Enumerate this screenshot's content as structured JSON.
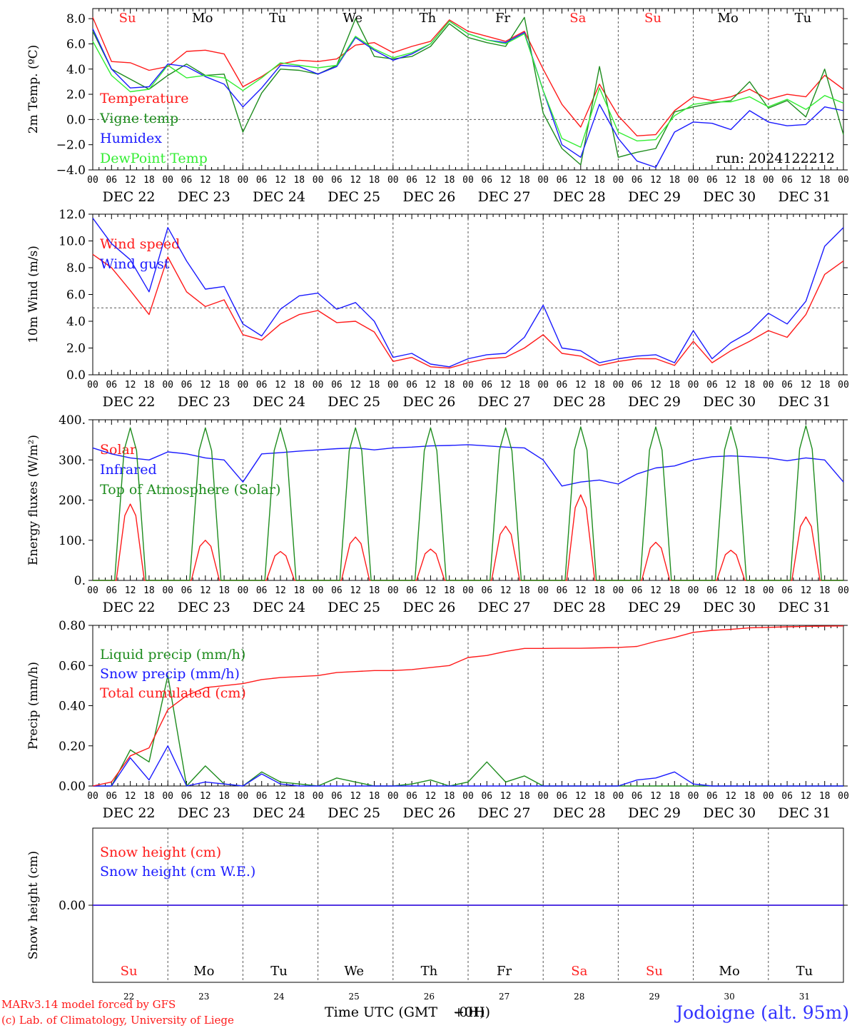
{
  "footer": {
    "credit_line1": "MARv3.14 model forced by GFS",
    "credit_line2": "(c) Lab. of Climatology, University of Liege",
    "xaxis_title_a": "Time UTC (GMT",
    "xaxis_title_b": "+0H)",
    "xaxis_title_overlap": "-0H)",
    "location": "Jodoigne (alt. 95m)"
  },
  "days": {
    "weekday_labels": [
      "Su",
      "Mo",
      "Tu",
      "We",
      "Th",
      "Fr",
      "Sa",
      "Su",
      "Mo",
      "Tu"
    ],
    "weekend_flags": [
      true,
      false,
      false,
      false,
      false,
      false,
      true,
      true,
      false,
      false
    ],
    "date_labels": [
      "DEC 22",
      "DEC 23",
      "DEC 24",
      "DEC 25",
      "DEC 26",
      "DEC 27",
      "DEC 28",
      "DEC 29",
      "DEC 30",
      "DEC 31"
    ],
    "day_numbers": [
      "22",
      "23",
      "24",
      "25",
      "26",
      "27",
      "28",
      "29",
      "30",
      "31"
    ],
    "hour_ticks": [
      "00",
      "06",
      "12",
      "18"
    ],
    "final_hour": "00"
  },
  "colors": {
    "red": "#ff1a1a",
    "green": "#1e8c1e",
    "blue": "#1a1aff",
    "lightgreen": "#33ee33",
    "axis": "#000000",
    "grid": "#555555",
    "weekend": "#ff2020"
  },
  "chart_data": [
    {
      "type": "line",
      "ylabel": "2m Temp. (ºC)",
      "ylim": [
        -4,
        8.8
      ],
      "yticks": [
        "8.0",
        "6.0",
        "4.0",
        "2.0",
        "0.0",
        "−2.0",
        "−4.0"
      ],
      "ytick_values": [
        8,
        6,
        4,
        2,
        0,
        -2,
        -4
      ],
      "hline": 0,
      "annotation": "run: 2024122212",
      "x_hours": [
        0,
        6,
        12,
        18,
        24,
        30,
        36,
        42,
        48,
        54,
        60,
        66,
        72,
        78,
        84,
        90,
        96,
        102,
        108,
        114,
        120,
        126,
        132,
        138,
        144,
        150,
        156,
        162,
        168,
        174,
        180,
        186,
        192,
        198,
        204,
        210,
        216,
        222,
        228,
        234,
        240
      ],
      "series": [
        {
          "name": "Temperature",
          "color_key": "red",
          "values": [
            8.1,
            4.6,
            4.5,
            3.9,
            4.2,
            5.4,
            5.5,
            5.2,
            2.6,
            3.4,
            4.4,
            4.7,
            4.6,
            4.8,
            5.9,
            6.1,
            5.3,
            5.8,
            6.2,
            7.9,
            7.0,
            6.6,
            6.2,
            7.0,
            4.0,
            1.2,
            -0.6,
            2.8,
            0.3,
            -1.3,
            -1.2,
            0.7,
            1.8,
            1.5,
            1.8,
            2.4,
            1.6,
            2.0,
            1.8,
            3.5,
            2.4
          ]
        },
        {
          "name": "Vigne temp",
          "color_key": "green",
          "values": [
            7.0,
            4.0,
            3.2,
            2.4,
            3.5,
            4.4,
            3.5,
            3.6,
            -1.0,
            2.1,
            4.0,
            3.9,
            3.6,
            4.3,
            8.0,
            5.0,
            4.8,
            5.0,
            5.8,
            7.6,
            6.5,
            6.1,
            5.8,
            8.1,
            0.5,
            -2.3,
            -3.6,
            4.2,
            -3.0,
            -2.6,
            -2.3,
            0.6,
            1.0,
            1.3,
            1.5,
            3.0,
            0.9,
            1.5,
            0.2,
            4.0,
            -1.2
          ]
        },
        {
          "name": "Humidex",
          "color_key": "blue",
          "values": [
            7.2,
            4.0,
            2.5,
            2.6,
            4.4,
            4.2,
            3.4,
            2.8,
            1.0,
            2.5,
            4.3,
            4.2,
            3.6,
            4.2,
            6.5,
            5.5,
            4.7,
            5.2,
            6.0,
            7.8,
            6.8,
            6.3,
            6.1,
            6.9,
            2.3,
            -2.0,
            -3.0,
            1.2,
            -1.5,
            -3.3,
            -3.8,
            -1.0,
            -0.2,
            -0.3,
            -0.8,
            0.7,
            -0.2,
            -0.5,
            -0.4,
            1.0,
            0.7
          ]
        },
        {
          "name": "DewPoint Temp",
          "color_key": "lightgreen",
          "values": [
            6.2,
            3.5,
            2.2,
            2.4,
            4.3,
            3.3,
            3.5,
            3.3,
            2.3,
            3.3,
            4.5,
            4.3,
            4.1,
            4.3,
            6.6,
            5.6,
            4.9,
            5.3,
            6.0,
            7.8,
            6.8,
            6.3,
            6.0,
            6.8,
            2.3,
            -1.5,
            -2.2,
            2.5,
            -1.0,
            -1.7,
            -1.6,
            0.3,
            1.2,
            1.4,
            1.4,
            1.8,
            1.0,
            1.6,
            0.8,
            1.9,
            1.3
          ]
        }
      ]
    },
    {
      "type": "line",
      "ylabel": "10m Wind (m/s)",
      "ylim": [
        0,
        12
      ],
      "yticks": [
        "12.0",
        "10.0",
        "8.0",
        "6.0",
        "4.0",
        "2.0",
        "0.0"
      ],
      "ytick_values": [
        12,
        10,
        8,
        6,
        4,
        2,
        0
      ],
      "hline": 5,
      "x_hours": [
        0,
        6,
        12,
        18,
        24,
        30,
        36,
        42,
        48,
        54,
        60,
        66,
        72,
        78,
        84,
        90,
        96,
        102,
        108,
        114,
        120,
        126,
        132,
        138,
        144,
        150,
        156,
        162,
        168,
        174,
        180,
        186,
        192,
        198,
        204,
        210,
        216,
        222,
        228,
        234,
        240
      ],
      "series": [
        {
          "name": "Wind speed",
          "color_key": "red",
          "values": [
            9.0,
            8.0,
            6.3,
            4.5,
            8.8,
            6.2,
            5.1,
            5.6,
            3.0,
            2.6,
            3.8,
            4.5,
            4.8,
            3.9,
            4.0,
            3.2,
            1.0,
            1.3,
            0.6,
            0.5,
            0.9,
            1.2,
            1.3,
            2.0,
            3.0,
            1.6,
            1.4,
            0.7,
            1.0,
            1.2,
            1.2,
            0.7,
            2.5,
            0.9,
            1.8,
            2.5,
            3.3,
            2.8,
            4.5,
            7.5,
            8.5
          ]
        },
        {
          "name": "Wind gust",
          "color_key": "blue",
          "values": [
            11.7,
            9.8,
            8.6,
            6.2,
            11.0,
            8.5,
            6.4,
            6.6,
            3.8,
            2.9,
            4.9,
            5.9,
            6.1,
            4.9,
            5.4,
            4.0,
            1.3,
            1.6,
            0.8,
            0.6,
            1.2,
            1.5,
            1.6,
            2.8,
            5.2,
            2.0,
            1.8,
            0.9,
            1.2,
            1.4,
            1.5,
            0.9,
            3.3,
            1.2,
            2.4,
            3.2,
            4.6,
            3.8,
            5.5,
            9.6,
            11.0
          ]
        }
      ]
    },
    {
      "type": "line",
      "ylabel": "Energy fluxes (W/m²)",
      "ylim": [
        0,
        400
      ],
      "yticks": [
        "400.",
        "300.",
        "200.",
        "100.",
        "0."
      ],
      "ytick_values": [
        400,
        300,
        200,
        100,
        0
      ],
      "x_hours": [
        0,
        6,
        12,
        18,
        24,
        30,
        36,
        42,
        48,
        54,
        60,
        66,
        72,
        78,
        84,
        90,
        96,
        102,
        108,
        114,
        120,
        126,
        132,
        138,
        144,
        150,
        156,
        162,
        168,
        174,
        180,
        186,
        192,
        198,
        204,
        210,
        216,
        222,
        228,
        234,
        240
      ],
      "series": [
        {
          "name": "Solar",
          "color_key": "red",
          "peaks": [
            190,
            100,
            72,
            108,
            78,
            135,
            213,
            95,
            75,
            158
          ]
        },
        {
          "name": "Infrared",
          "color_key": "blue",
          "values": [
            330,
            315,
            305,
            300,
            320,
            315,
            305,
            300,
            245,
            315,
            318,
            322,
            325,
            328,
            330,
            325,
            330,
            332,
            335,
            336,
            338,
            335,
            332,
            330,
            300,
            235,
            245,
            250,
            240,
            265,
            280,
            285,
            300,
            308,
            310,
            308,
            305,
            298,
            305,
            300,
            245
          ]
        },
        {
          "name": "Top of Atmosphere (Solar)",
          "color_key": "green",
          "peaks": [
            380,
            380,
            380,
            380,
            380,
            380,
            382,
            382,
            383,
            385
          ]
        }
      ]
    },
    {
      "type": "line",
      "ylabel": "Precip (mm/h)",
      "ylim": [
        0,
        0.8
      ],
      "yticks": [
        "0.80",
        "0.60",
        "0.40",
        "0.20",
        "0.00"
      ],
      "ytick_values": [
        0.8,
        0.6,
        0.4,
        0.2,
        0.0
      ],
      "x_hours": [
        0,
        6,
        12,
        18,
        24,
        30,
        36,
        42,
        48,
        54,
        60,
        66,
        72,
        78,
        84,
        90,
        96,
        102,
        108,
        114,
        120,
        126,
        132,
        138,
        144,
        150,
        156,
        162,
        168,
        174,
        180,
        186,
        192,
        198,
        204,
        210,
        216,
        222,
        228,
        234,
        240
      ],
      "series": [
        {
          "name": "Liquid precip (mm/h)",
          "color_key": "green",
          "values": [
            0.0,
            0.0,
            0.18,
            0.12,
            0.55,
            0.0,
            0.1,
            0.01,
            0.0,
            0.07,
            0.02,
            0.01,
            0.0,
            0.04,
            0.02,
            0.0,
            0.0,
            0.01,
            0.03,
            0.0,
            0.02,
            0.12,
            0.02,
            0.05,
            0.0,
            0.0,
            0.0,
            0.0,
            0.0,
            0.0,
            0.0,
            0.0,
            0.0,
            0.0,
            0.0,
            0.0,
            0.0,
            0.0,
            0.0,
            0.0,
            0.0
          ]
        },
        {
          "name": "Snow precip (mm/h)",
          "color_key": "blue",
          "values": [
            0.0,
            0.0,
            0.14,
            0.03,
            0.2,
            0.0,
            0.02,
            0.01,
            0.0,
            0.06,
            0.01,
            0.0,
            0.0,
            0.0,
            0.0,
            0.0,
            0.0,
            0.0,
            0.0,
            0.0,
            0.0,
            0.0,
            0.0,
            0.0,
            0.0,
            0.0,
            0.0,
            0.0,
            0.0,
            0.03,
            0.04,
            0.07,
            0.01,
            0.0,
            0.0,
            0.0,
            0.0,
            0.0,
            0.0,
            0.0,
            0.0
          ]
        },
        {
          "name": "Total cumulated (cm)",
          "color_key": "red",
          "values": [
            0.0,
            0.02,
            0.15,
            0.19,
            0.38,
            0.45,
            0.49,
            0.5,
            0.51,
            0.53,
            0.54,
            0.545,
            0.55,
            0.565,
            0.57,
            0.575,
            0.575,
            0.58,
            0.59,
            0.6,
            0.64,
            0.65,
            0.67,
            0.685,
            0.685,
            0.686,
            0.686,
            0.688,
            0.69,
            0.695,
            0.72,
            0.74,
            0.765,
            0.775,
            0.78,
            0.788,
            0.79,
            0.793,
            0.795,
            0.796,
            0.797
          ]
        }
      ]
    },
    {
      "type": "line",
      "ylabel": "Snow height (cm)",
      "ylim": [
        -1,
        1
      ],
      "yticks": [
        "0.00"
      ],
      "ytick_values": [
        0
      ],
      "x_hours": [
        0,
        240
      ],
      "series": [
        {
          "name": "Snow height (cm)",
          "color_key": "red",
          "values": [
            0,
            0
          ]
        },
        {
          "name": "Snow height (cm W.E.)",
          "color_key": "blue",
          "values": [
            0,
            0
          ]
        }
      ]
    }
  ]
}
